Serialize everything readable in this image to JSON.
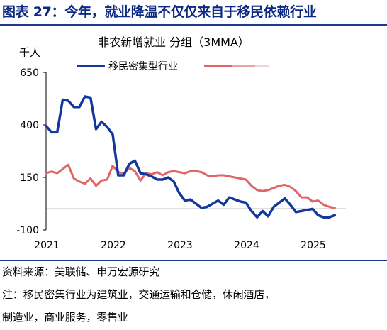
{
  "figure_title": "图表 27：今年，就业降温不仅仅来自于移民依赖行业",
  "notes": {
    "source": "资料来源：美联储、申万宏源研究",
    "note_line1": "注：移民密集行业为建筑业，交通运输和仓储，休闲酒店，",
    "note_line2": "制造业，商业服务，零售业"
  },
  "colors": {
    "title": "#0d2a82",
    "rule": "#1b3a8f",
    "series1": "#1238a0",
    "series2": "#e06666",
    "axis": "#000000"
  },
  "chart_data": {
    "type": "line",
    "title": "非农新增就业 分组（3MMA）",
    "unit_label": "千人",
    "xlim": [
      2021.0,
      2025.5
    ],
    "ylim": [
      -100,
      650
    ],
    "yticks": [
      650,
      400,
      150,
      -100
    ],
    "xtick_labels": [
      "2021",
      "2022",
      "2023",
      "2024",
      "2025"
    ],
    "grid": false,
    "legend_position": "top",
    "series": [
      {
        "name": "移民密集型行业",
        "color": "#1238a0",
        "x": [
          2021.0,
          2021.083,
          2021.167,
          2021.25,
          2021.333,
          2021.417,
          2021.5,
          2021.583,
          2021.667,
          2021.75,
          2021.833,
          2021.917,
          2022.0,
          2022.083,
          2022.167,
          2022.25,
          2022.333,
          2022.417,
          2022.5,
          2022.583,
          2022.667,
          2022.75,
          2022.833,
          2022.917,
          2023.0,
          2023.083,
          2023.167,
          2023.25,
          2023.333,
          2023.417,
          2023.5,
          2023.583,
          2023.667,
          2023.75,
          2023.833,
          2023.917,
          2024.0,
          2024.083,
          2024.167,
          2024.25,
          2024.333,
          2024.417,
          2024.5,
          2024.583,
          2024.667,
          2024.75,
          2024.833,
          2024.917,
          2025.0,
          2025.083,
          2025.167,
          2025.25,
          2025.333
        ],
        "values": [
          395,
          365,
          365,
          520,
          515,
          485,
          485,
          535,
          530,
          380,
          415,
          390,
          355,
          160,
          160,
          215,
          230,
          170,
          165,
          155,
          140,
          140,
          150,
          130,
          75,
          40,
          45,
          25,
          5,
          10,
          25,
          40,
          20,
          55,
          45,
          35,
          30,
          -10,
          -40,
          -10,
          -35,
          10,
          30,
          50,
          20,
          -15,
          -10,
          -5,
          0,
          -30,
          -40,
          -40,
          -30
        ]
      },
      {
        "name": "",
        "color": "#e06666",
        "x": [
          2021.0,
          2021.083,
          2021.167,
          2021.25,
          2021.333,
          2021.417,
          2021.5,
          2021.583,
          2021.667,
          2021.75,
          2021.833,
          2021.917,
          2022.0,
          2022.083,
          2022.167,
          2022.25,
          2022.333,
          2022.417,
          2022.5,
          2022.583,
          2022.667,
          2022.75,
          2022.833,
          2022.917,
          2023.0,
          2023.083,
          2023.167,
          2023.25,
          2023.333,
          2023.417,
          2023.5,
          2023.583,
          2023.667,
          2023.75,
          2023.833,
          2023.917,
          2024.0,
          2024.083,
          2024.167,
          2024.25,
          2024.333,
          2024.417,
          2024.5,
          2024.583,
          2024.667,
          2024.75,
          2024.833,
          2024.917,
          2025.0,
          2025.083,
          2025.167,
          2025.25,
          2025.333
        ],
        "values": [
          170,
          178,
          170,
          190,
          210,
          145,
          130,
          120,
          145,
          110,
          135,
          140,
          205,
          175,
          170,
          195,
          180,
          135,
          170,
          165,
          175,
          160,
          175,
          180,
          175,
          170,
          180,
          180,
          175,
          160,
          155,
          160,
          160,
          155,
          150,
          145,
          140,
          110,
          90,
          85,
          90,
          100,
          110,
          115,
          105,
          85,
          55,
          55,
          35,
          40,
          20,
          10,
          5
        ]
      }
    ]
  }
}
